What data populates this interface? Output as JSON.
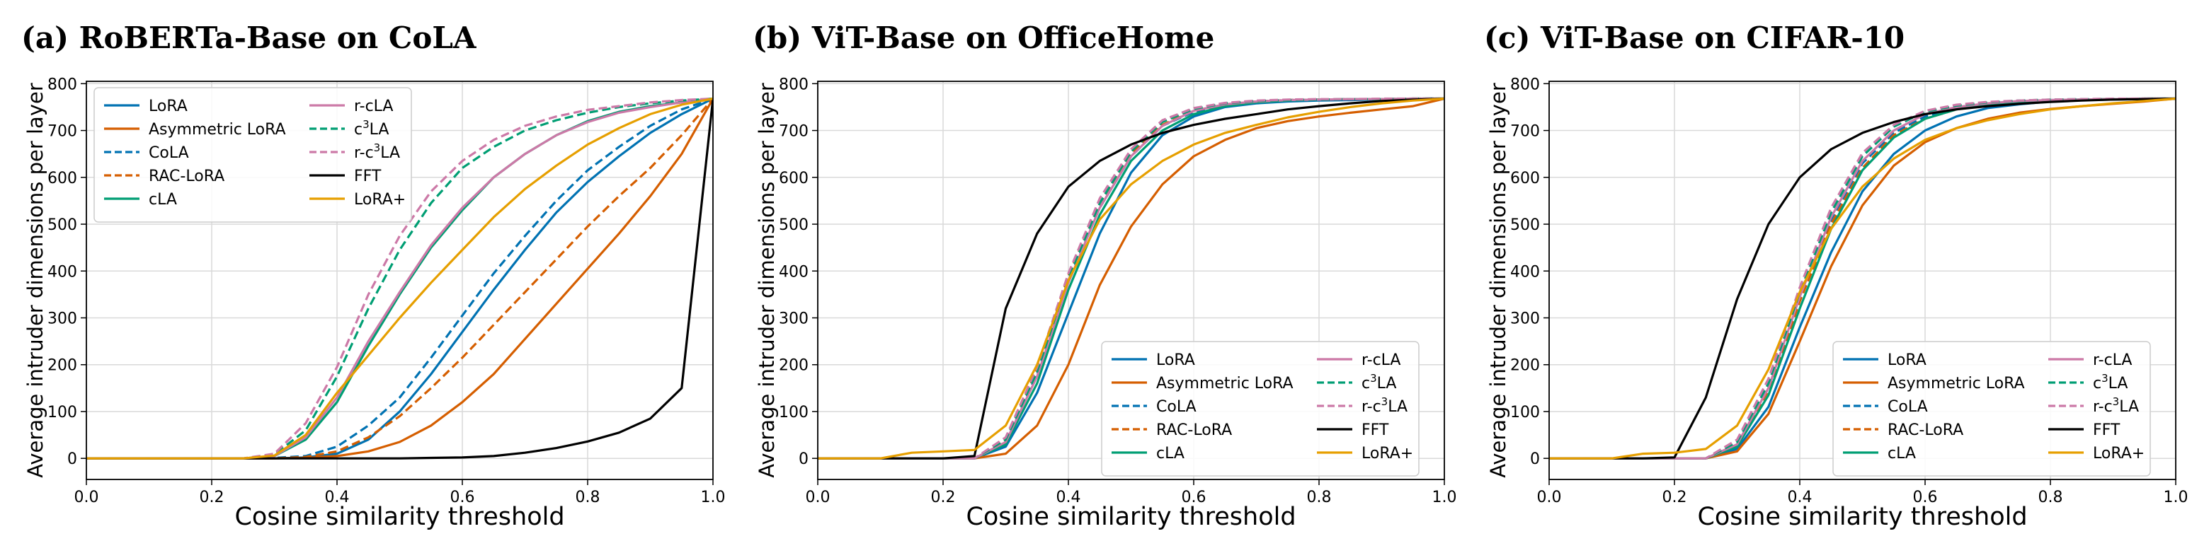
{
  "chart_data": [
    {
      "type": "line",
      "title": "(a) RoBERTa-Base on CoLA",
      "xlabel": "Cosine similarity threshold",
      "ylabel": "Average intruder dimensions per layer",
      "xlim": [
        0.0,
        1.0
      ],
      "ylim": [
        -45,
        805
      ],
      "xticks": [
        0.0,
        0.2,
        0.4,
        0.6,
        0.8,
        1.0
      ],
      "yticks": [
        0,
        100,
        200,
        300,
        400,
        500,
        600,
        700,
        800
      ],
      "grid": true,
      "legend_placement": "top-left",
      "x": [
        0.0,
        0.05,
        0.1,
        0.15,
        0.2,
        0.25,
        0.3,
        0.35,
        0.4,
        0.45,
        0.5,
        0.55,
        0.6,
        0.65,
        0.7,
        0.75,
        0.8,
        0.85,
        0.9,
        0.95,
        1.0
      ],
      "series": [
        {
          "name": "LoRA",
          "values": [
            0,
            0,
            0,
            0,
            0,
            0,
            0,
            2,
            10,
            40,
            100,
            180,
            270,
            360,
            445,
            525,
            590,
            645,
            695,
            735,
            768
          ]
        },
        {
          "name": "Asymmetric LoRA",
          "values": [
            0,
            0,
            0,
            0,
            0,
            0,
            0,
            1,
            5,
            15,
            35,
            70,
            120,
            180,
            255,
            330,
            405,
            480,
            560,
            650,
            768
          ]
        },
        {
          "name": "CoLA",
          "values": [
            0,
            0,
            0,
            0,
            0,
            0,
            1,
            5,
            25,
            70,
            130,
            215,
            305,
            395,
            475,
            550,
            615,
            665,
            710,
            745,
            768
          ]
        },
        {
          "name": "RAC-LoRA",
          "values": [
            0,
            0,
            0,
            0,
            0,
            0,
            0,
            3,
            15,
            45,
            90,
            150,
            215,
            285,
            355,
            425,
            495,
            560,
            620,
            690,
            768
          ]
        },
        {
          "name": "cLA",
          "values": [
            0,
            0,
            0,
            0,
            0,
            0,
            5,
            40,
            120,
            240,
            350,
            450,
            530,
            600,
            650,
            690,
            720,
            740,
            752,
            760,
            768
          ]
        },
        {
          "name": "r-cLA",
          "values": [
            0,
            0,
            0,
            0,
            0,
            0,
            5,
            45,
            130,
            250,
            355,
            455,
            535,
            600,
            650,
            690,
            718,
            738,
            750,
            760,
            768
          ]
        },
        {
          "name": "c³LA",
          "values": [
            0,
            0,
            0,
            0,
            0,
            0,
            8,
            60,
            175,
            320,
            445,
            545,
            620,
            665,
            700,
            722,
            738,
            750,
            758,
            764,
            768
          ]
        },
        {
          "name": "r-c³LA",
          "values": [
            0,
            0,
            0,
            0,
            0,
            0,
            10,
            75,
            195,
            350,
            475,
            570,
            635,
            680,
            710,
            730,
            744,
            752,
            760,
            765,
            768
          ]
        },
        {
          "name": "FFT",
          "values": [
            0,
            0,
            0,
            0,
            0,
            0,
            0,
            0,
            0,
            0,
            0,
            1,
            2,
            5,
            12,
            22,
            36,
            55,
            85,
            150,
            768
          ]
        },
        {
          "name": "LoRA+",
          "values": [
            0,
            0,
            0,
            0,
            0,
            0,
            6,
            50,
            140,
            220,
            300,
            375,
            445,
            515,
            575,
            625,
            670,
            705,
            735,
            755,
            768
          ]
        }
      ]
    },
    {
      "type": "line",
      "title": "(b) ViT-Base on OfficeHome",
      "xlabel": "Cosine similarity threshold",
      "ylabel": "Average intruder dimensions per layer",
      "xlim": [
        0.0,
        1.0
      ],
      "ylim": [
        -45,
        805
      ],
      "xticks": [
        0.0,
        0.2,
        0.4,
        0.6,
        0.8,
        1.0
      ],
      "yticks": [
        0,
        100,
        200,
        300,
        400,
        500,
        600,
        700,
        800
      ],
      "grid": true,
      "legend_placement": "bottom-right",
      "x": [
        0.0,
        0.05,
        0.1,
        0.15,
        0.2,
        0.25,
        0.3,
        0.35,
        0.4,
        0.45,
        0.5,
        0.55,
        0.6,
        0.65,
        0.7,
        0.75,
        0.8,
        0.85,
        0.9,
        0.95,
        1.0
      ],
      "series": [
        {
          "name": "LoRA",
          "values": [
            0,
            0,
            0,
            0,
            0,
            0,
            25,
            140,
            310,
            480,
            610,
            690,
            730,
            750,
            758,
            762,
            764,
            765,
            766,
            767,
            768
          ]
        },
        {
          "name": "Asymmetric LoRA",
          "values": [
            0,
            0,
            0,
            0,
            0,
            0,
            10,
            70,
            200,
            370,
            495,
            585,
            645,
            680,
            705,
            720,
            730,
            738,
            745,
            752,
            768
          ]
        },
        {
          "name": "CoLA",
          "values": [
            0,
            0,
            0,
            0,
            0,
            0,
            35,
            180,
            380,
            535,
            645,
            710,
            740,
            755,
            762,
            765,
            766,
            767,
            767,
            768,
            768
          ]
        },
        {
          "name": "RAC-LoRA",
          "values": [
            0,
            0,
            0,
            0,
            0,
            0,
            40,
            190,
            390,
            545,
            650,
            712,
            742,
            756,
            762,
            765,
            766,
            767,
            767,
            768,
            768
          ]
        },
        {
          "name": "cLA",
          "values": [
            0,
            0,
            0,
            0,
            0,
            0,
            30,
            160,
            360,
            520,
            635,
            700,
            735,
            752,
            760,
            764,
            766,
            767,
            767,
            768,
            768
          ]
        },
        {
          "name": "r-cLA",
          "values": [
            0,
            0,
            0,
            0,
            0,
            0,
            35,
            175,
            375,
            535,
            645,
            710,
            742,
            756,
            762,
            765,
            766,
            767,
            767,
            768,
            768
          ]
        },
        {
          "name": "c³LA",
          "values": [
            0,
            0,
            0,
            0,
            0,
            0,
            40,
            185,
            385,
            545,
            655,
            718,
            746,
            758,
            763,
            765,
            766,
            767,
            767,
            768,
            768
          ]
        },
        {
          "name": "r-c³LA",
          "values": [
            0,
            0,
            0,
            0,
            0,
            0,
            45,
            195,
            395,
            555,
            660,
            722,
            748,
            759,
            764,
            766,
            767,
            767,
            768,
            768,
            768
          ]
        },
        {
          "name": "FFT",
          "values": [
            0,
            0,
            0,
            0,
            0,
            5,
            320,
            480,
            580,
            635,
            670,
            695,
            712,
            725,
            735,
            745,
            752,
            758,
            763,
            766,
            768
          ]
        },
        {
          "name": "LoRA+",
          "values": [
            0,
            0,
            0,
            12,
            15,
            18,
            70,
            200,
            380,
            510,
            585,
            635,
            670,
            695,
            712,
            728,
            740,
            750,
            758,
            764,
            768
          ]
        }
      ]
    },
    {
      "type": "line",
      "title": "(c) ViT-Base on CIFAR-10",
      "xlabel": "Cosine similarity threshold",
      "ylabel": "Average intruder dimensions per layer",
      "xlim": [
        0.0,
        1.0
      ],
      "ylim": [
        -45,
        805
      ],
      "xticks": [
        0.0,
        0.2,
        0.4,
        0.6,
        0.8,
        1.0
      ],
      "yticks": [
        0,
        100,
        200,
        300,
        400,
        500,
        600,
        700,
        800
      ],
      "grid": true,
      "legend_placement": "bottom-right",
      "x": [
        0.0,
        0.05,
        0.1,
        0.15,
        0.2,
        0.25,
        0.3,
        0.35,
        0.4,
        0.45,
        0.5,
        0.55,
        0.6,
        0.65,
        0.7,
        0.75,
        0.8,
        0.85,
        0.9,
        0.95,
        1.0
      ],
      "series": [
        {
          "name": "LoRA",
          "values": [
            0,
            0,
            0,
            0,
            0,
            0,
            20,
            110,
            280,
            440,
            570,
            650,
            700,
            730,
            748,
            756,
            762,
            765,
            766,
            767,
            768
          ]
        },
        {
          "name": "Asymmetric LoRA",
          "values": [
            0,
            0,
            0,
            0,
            0,
            0,
            15,
            95,
            250,
            410,
            540,
            625,
            675,
            705,
            725,
            738,
            746,
            752,
            757,
            762,
            768
          ]
        },
        {
          "name": "CoLA",
          "values": [
            0,
            0,
            0,
            0,
            0,
            0,
            30,
            150,
            340,
            510,
            630,
            695,
            730,
            748,
            757,
            762,
            765,
            766,
            767,
            768,
            768
          ]
        },
        {
          "name": "RAC-LoRA",
          "values": [
            0,
            0,
            0,
            0,
            0,
            0,
            30,
            145,
            335,
            500,
            620,
            690,
            725,
            745,
            755,
            760,
            764,
            766,
            767,
            768,
            768
          ]
        },
        {
          "name": "cLA",
          "values": [
            0,
            0,
            0,
            0,
            0,
            0,
            25,
            135,
            320,
            490,
            615,
            685,
            725,
            745,
            755,
            761,
            764,
            766,
            767,
            768,
            768
          ]
        },
        {
          "name": "r-cLA",
          "values": [
            0,
            0,
            0,
            0,
            0,
            0,
            30,
            150,
            345,
            515,
            635,
            700,
            735,
            750,
            758,
            763,
            765,
            766,
            767,
            768,
            768
          ]
        },
        {
          "name": "c³LA",
          "values": [
            0,
            0,
            0,
            0,
            0,
            0,
            35,
            160,
            355,
            525,
            645,
            708,
            740,
            753,
            760,
            764,
            766,
            767,
            767,
            768,
            768
          ]
        },
        {
          "name": "r-c³LA",
          "values": [
            0,
            0,
            0,
            0,
            0,
            0,
            40,
            170,
            365,
            535,
            652,
            712,
            742,
            755,
            761,
            764,
            766,
            767,
            768,
            768,
            768
          ]
        },
        {
          "name": "FFT",
          "values": [
            0,
            0,
            0,
            0,
            2,
            130,
            340,
            500,
            600,
            660,
            695,
            718,
            735,
            745,
            752,
            757,
            761,
            764,
            766,
            767,
            768
          ]
        },
        {
          "name": "LoRA+",
          "values": [
            0,
            0,
            0,
            10,
            12,
            20,
            70,
            190,
            355,
            490,
            580,
            640,
            680,
            705,
            722,
            735,
            745,
            752,
            758,
            763,
            768
          ]
        }
      ]
    }
  ],
  "series_styles": [
    {
      "name": "LoRA",
      "color": "#0072B2",
      "dash": "solid"
    },
    {
      "name": "Asymmetric LoRA",
      "color": "#D55E00",
      "dash": "solid"
    },
    {
      "name": "CoLA",
      "color": "#0072B2",
      "dash": "dashed"
    },
    {
      "name": "RAC-LoRA",
      "color": "#D55E00",
      "dash": "dashed"
    },
    {
      "name": "cLA",
      "color": "#009E73",
      "dash": "solid"
    },
    {
      "name": "r-cLA",
      "color": "#CC79A7",
      "dash": "solid"
    },
    {
      "name": "c³LA",
      "color": "#009E73",
      "dash": "dashed"
    },
    {
      "name": "r-c³LA",
      "color": "#CC79A7",
      "dash": "dashed"
    },
    {
      "name": "FFT",
      "color": "#000000",
      "dash": "solid"
    },
    {
      "name": "LoRA+",
      "color": "#E69F00",
      "dash": "solid"
    }
  ],
  "colors": {
    "grid": "#d9d9d9",
    "axes": "#000000",
    "background": "#ffffff"
  }
}
